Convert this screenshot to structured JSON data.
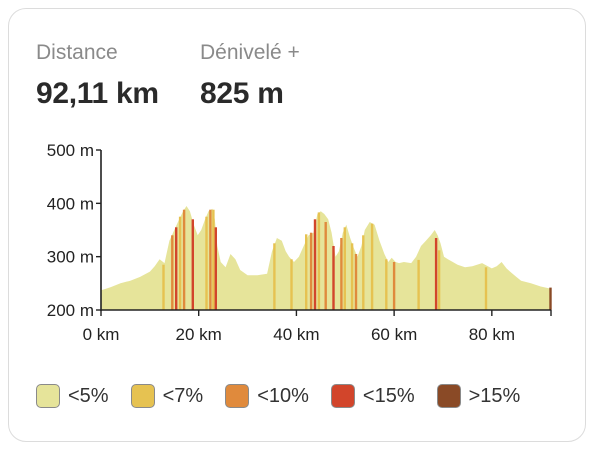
{
  "stats": {
    "distance_label": "Distance",
    "distance_value": "92,11 km",
    "elevation_label": "Dénivelé +",
    "elevation_value": "825 m"
  },
  "legend": [
    {
      "label": "<5%",
      "color": "#e6e49a"
    },
    {
      "label": "<7%",
      "color": "#e6c251"
    },
    {
      "label": "<10%",
      "color": "#e08a3c"
    },
    {
      "label": "<15%",
      "color": "#d2452b"
    },
    {
      "label": ">15%",
      "color": "#8a4a26"
    }
  ],
  "chart_data": {
    "type": "area",
    "title": "",
    "xlabel": "",
    "ylabel": "",
    "xlim": [
      0,
      92.11
    ],
    "ylim": [
      200,
      500
    ],
    "x_ticks": [
      0,
      20,
      40,
      60,
      80
    ],
    "x_tick_labels": [
      "0 km",
      "20 km",
      "40 km",
      "60 km",
      "80 km"
    ],
    "y_ticks": [
      200,
      300,
      400,
      500
    ],
    "y_tick_labels": [
      "200 m",
      "300 m",
      "400 m",
      "500 m"
    ],
    "grid": false,
    "profile": {
      "x": [
        0,
        1,
        2,
        4,
        6,
        8,
        10,
        11,
        12,
        13,
        14,
        15,
        16,
        16.8,
        17.5,
        18.2,
        19,
        19.8,
        20.5,
        21.3,
        22,
        22.8,
        23.3,
        23.8,
        24.5,
        25.5,
        26.5,
        27.5,
        28.5,
        30,
        32,
        34,
        35,
        36,
        37,
        37.8,
        38.5,
        39.5,
        40.5,
        41.5,
        42.5,
        43.5,
        44.3,
        45,
        45.7,
        46.5,
        47.2,
        48,
        48.7,
        49.5,
        50.2,
        51,
        51.8,
        52.5,
        53.3,
        54,
        55,
        56,
        57,
        58,
        58.8,
        59.5,
        60.3,
        61,
        62,
        63.5,
        64.5,
        65.5,
        66.5,
        67.5,
        68.3,
        68.9,
        69.5,
        70.2,
        71,
        72,
        73,
        74.5,
        76,
        78,
        80,
        81,
        82,
        83,
        84,
        85,
        86,
        88,
        90,
        92.11
      ],
      "y": [
        237,
        240,
        243,
        250,
        255,
        262,
        272,
        282,
        295,
        288,
        330,
        350,
        370,
        385,
        395,
        385,
        360,
        340,
        350,
        370,
        385,
        390,
        370,
        320,
        290,
        280,
        305,
        295,
        275,
        265,
        265,
        268,
        310,
        335,
        330,
        310,
        300,
        290,
        300,
        320,
        340,
        345,
        380,
        385,
        380,
        370,
        345,
        300,
        310,
        345,
        360,
        335,
        315,
        300,
        320,
        350,
        365,
        360,
        330,
        305,
        290,
        298,
        290,
        288,
        290,
        288,
        300,
        320,
        330,
        340,
        350,
        340,
        325,
        300,
        295,
        290,
        285,
        280,
        282,
        288,
        278,
        282,
        290,
        278,
        270,
        262,
        255,
        250,
        244,
        240
      ]
    },
    "steep_segments": [
      {
        "x": 12.8,
        "y": 285,
        "grade": "<7%"
      },
      {
        "x": 14.6,
        "y": 340,
        "grade": "<10%"
      },
      {
        "x": 15.4,
        "y": 355,
        "grade": "<15%"
      },
      {
        "x": 16.2,
        "y": 375,
        "grade": "<7%"
      },
      {
        "x": 17.0,
        "y": 388,
        "grade": "<10%"
      },
      {
        "x": 18.8,
        "y": 370,
        "grade": "<15%"
      },
      {
        "x": 21.6,
        "y": 375,
        "grade": "<7%"
      },
      {
        "x": 22.4,
        "y": 388,
        "grade": "<10%"
      },
      {
        "x": 23.0,
        "y": 388,
        "grade": "<7%"
      },
      {
        "x": 23.5,
        "y": 355,
        "grade": "<15%"
      },
      {
        "x": 35.5,
        "y": 325,
        "grade": "<7%"
      },
      {
        "x": 39.0,
        "y": 295,
        "grade": "<7%"
      },
      {
        "x": 42.0,
        "y": 342,
        "grade": "<7%"
      },
      {
        "x": 43.0,
        "y": 345,
        "grade": "<10%"
      },
      {
        "x": 43.8,
        "y": 370,
        "grade": "<15%"
      },
      {
        "x": 44.6,
        "y": 383,
        "grade": "<7%"
      },
      {
        "x": 46.0,
        "y": 365,
        "grade": "<10%"
      },
      {
        "x": 47.6,
        "y": 320,
        "grade": "<15%"
      },
      {
        "x": 49.2,
        "y": 335,
        "grade": "<10%"
      },
      {
        "x": 49.9,
        "y": 355,
        "grade": "<7%"
      },
      {
        "x": 51.4,
        "y": 325,
        "grade": "<7%"
      },
      {
        "x": 52.2,
        "y": 305,
        "grade": "<10%"
      },
      {
        "x": 53.7,
        "y": 340,
        "grade": "<7%"
      },
      {
        "x": 55.5,
        "y": 362,
        "grade": "<7%"
      },
      {
        "x": 58.4,
        "y": 295,
        "grade": "<7%"
      },
      {
        "x": 60.0,
        "y": 290,
        "grade": "<10%"
      },
      {
        "x": 65.0,
        "y": 294,
        "grade": "<7%"
      },
      {
        "x": 68.6,
        "y": 335,
        "grade": "<15%"
      },
      {
        "x": 69.2,
        "y": 312,
        "grade": "<7%"
      },
      {
        "x": 78.8,
        "y": 280,
        "grade": "<7%"
      },
      {
        "x": 92.0,
        "y": 242,
        "grade": ">15%"
      }
    ]
  }
}
